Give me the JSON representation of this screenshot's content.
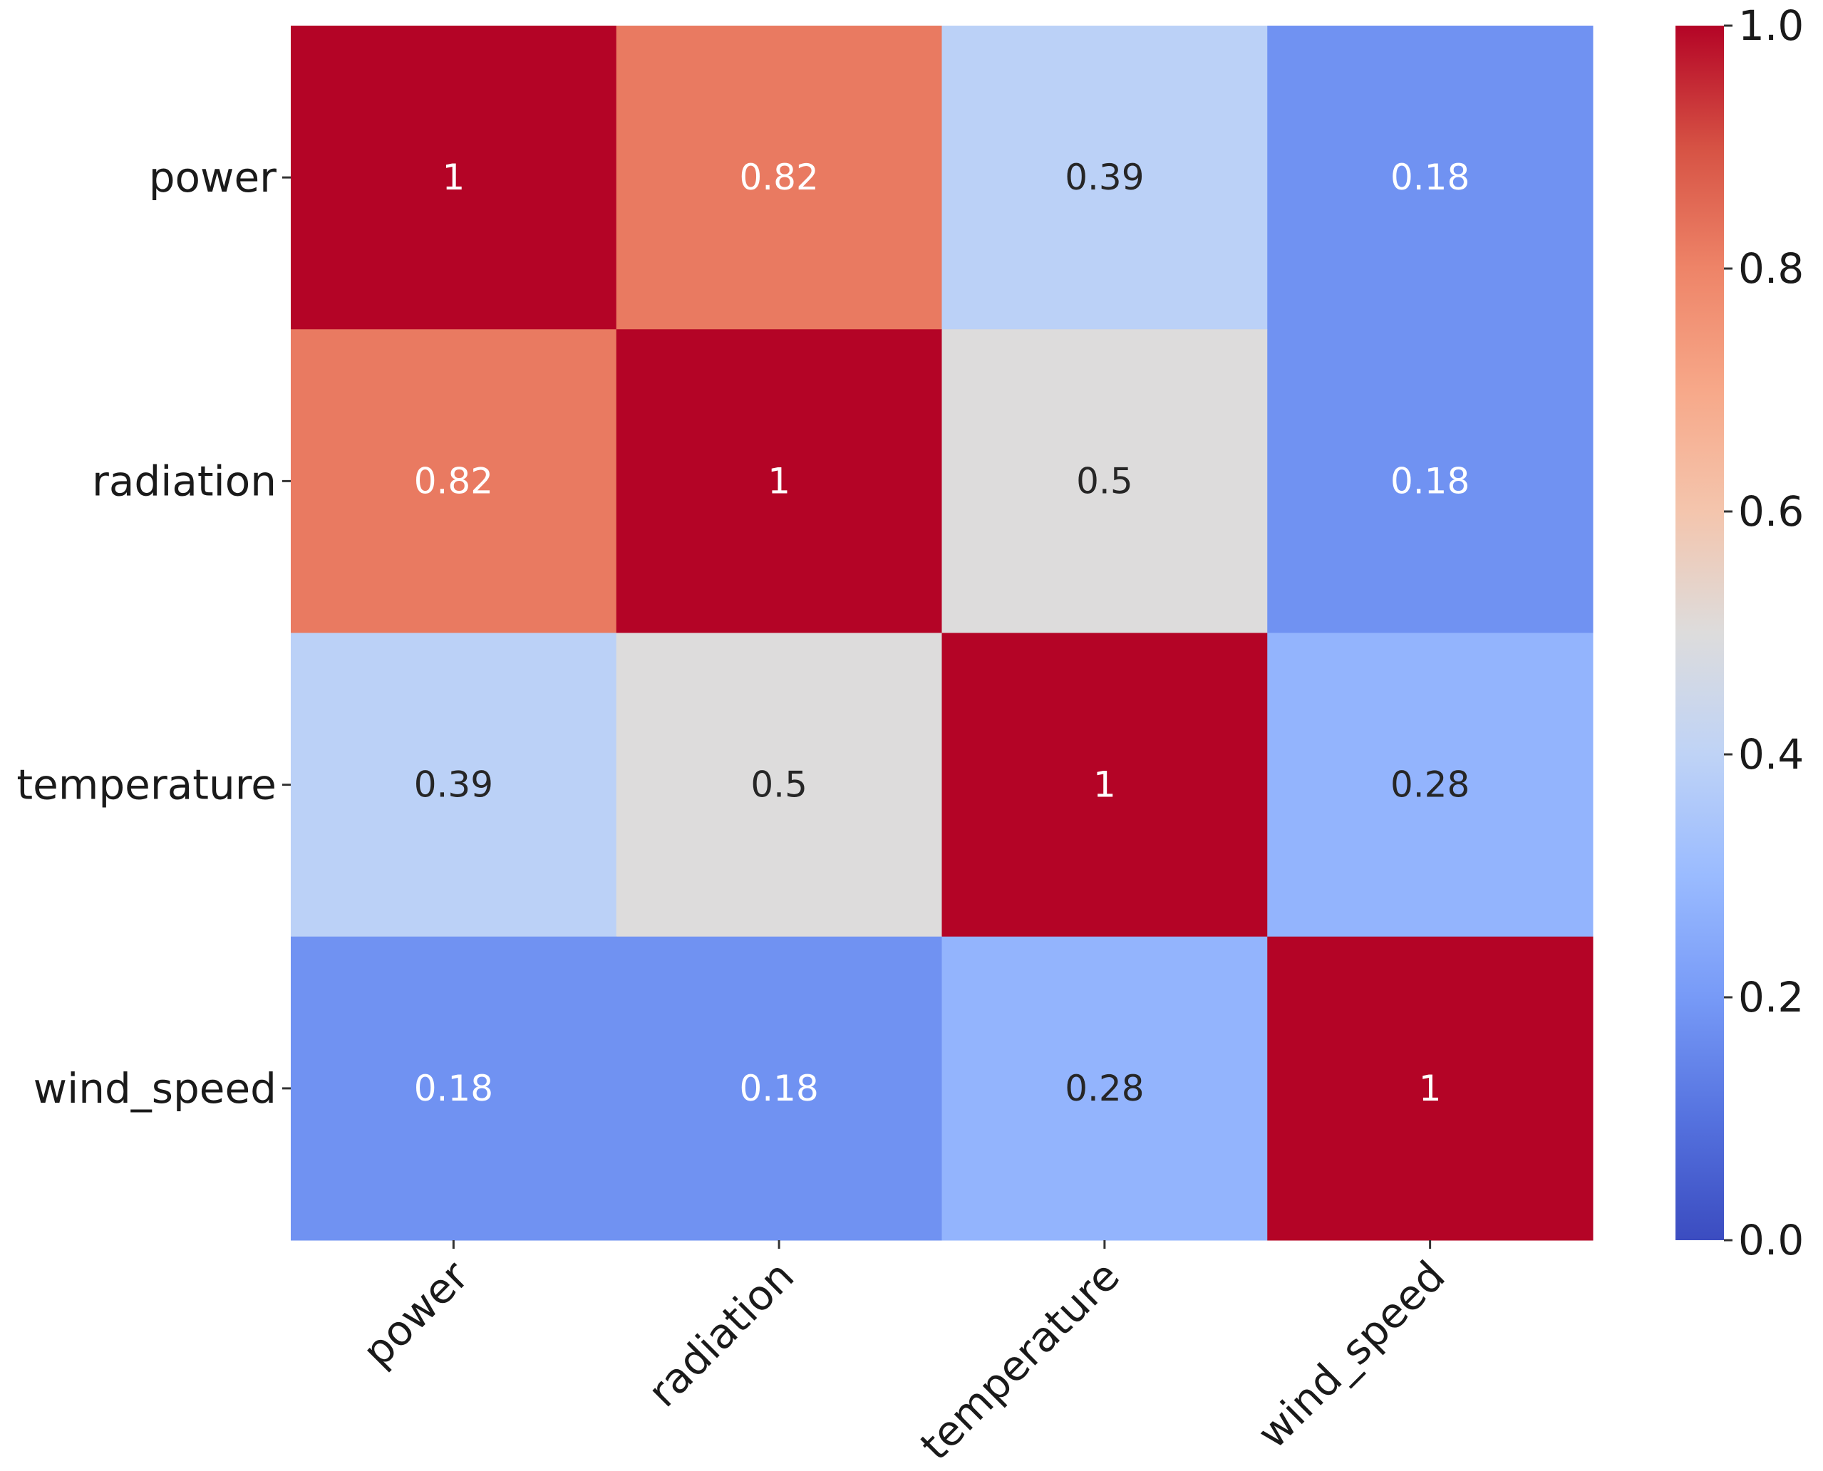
{
  "chart_data": {
    "type": "heatmap",
    "title": "",
    "xlabel": "",
    "ylabel": "",
    "x_categories": [
      "power",
      "radiation",
      "temperature",
      "wind_speed"
    ],
    "y_categories": [
      "power",
      "radiation",
      "temperature",
      "wind_speed"
    ],
    "values": [
      [
        1,
        0.82,
        0.39,
        0.18
      ],
      [
        0.82,
        1,
        0.5,
        0.18
      ],
      [
        0.39,
        0.5,
        1,
        0.28
      ],
      [
        0.18,
        0.18,
        0.28,
        1
      ]
    ],
    "annotations": [
      [
        "1",
        "0.82",
        "0.39",
        "0.18"
      ],
      [
        "0.82",
        "1",
        "0.5",
        "0.18"
      ],
      [
        "0.39",
        "0.5",
        "1",
        "0.28"
      ],
      [
        "0.18",
        "0.18",
        "0.28",
        "1"
      ]
    ],
    "colormap": "coolwarm",
    "vmin": 0,
    "vmax": 1,
    "colorbar": {
      "position": "right",
      "ticks": [
        0.0,
        0.2,
        0.4,
        0.6,
        0.8,
        1.0
      ],
      "tick_labels": [
        "0.0",
        "0.2",
        "0.4",
        "0.6",
        "0.8",
        "1.0"
      ]
    },
    "colormap_stops": [
      "#3b4cc0",
      "#5572df",
      "#779af7",
      "#9abbff",
      "#bfd3f6",
      "#dddcdc",
      "#f4c5ad",
      "#f7a889",
      "#ee8468",
      "#d65244",
      "#b40426"
    ]
  }
}
